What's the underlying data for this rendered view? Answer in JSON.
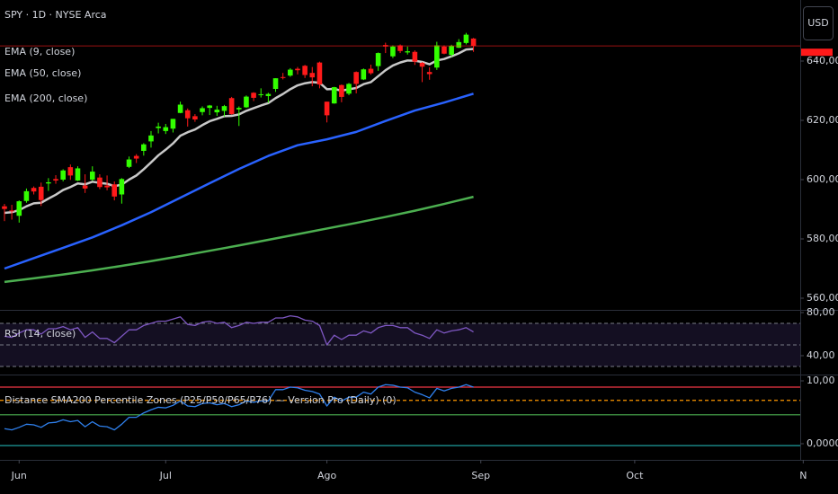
{
  "chart_data": [
    {
      "type": "candlestick",
      "title": "SPY · 1D · NYSE Arca",
      "x": [
        0,
        1,
        2,
        3,
        4,
        5,
        6,
        7,
        8,
        9,
        10,
        11,
        12,
        13,
        14,
        15,
        16,
        17,
        18,
        19,
        20,
        21,
        22,
        23,
        24,
        25,
        26,
        27,
        28,
        29,
        30,
        31,
        32,
        33,
        34,
        35,
        36,
        37,
        38,
        39,
        40,
        41,
        42,
        43,
        44,
        45,
        46,
        47,
        48,
        49,
        50,
        51,
        52,
        53,
        54,
        55,
        56,
        57,
        58,
        59,
        60,
        61,
        62,
        63,
        64
      ],
      "open": [
        591.0,
        589.6,
        587.8,
        592.8,
        597.2,
        597.6,
        598.7,
        600.2,
        600.0,
        604.2,
        599.7,
        598.0,
        600.0,
        600.7,
        598.0,
        598.4,
        595.0,
        604.3,
        608.0,
        609.7,
        612.9,
        617.4,
        616.4,
        617.2,
        622.5,
        623.4,
        621.4,
        622.8,
        624.2,
        622.7,
        623.2,
        627.5,
        623.7,
        624.4,
        629.3,
        628.8,
        628.2,
        630.6,
        634.6,
        635.1,
        637.4,
        638.4,
        636.0,
        639.5,
        626.3,
        625.7,
        631.9,
        629.0,
        636.3,
        633.8,
        637.4,
        638.3,
        645.4,
        641.6,
        645.3,
        642.9,
        643.1,
        639.4,
        636.3,
        637.8,
        644.9,
        642.1,
        644.5,
        646.1,
        647.6
      ],
      "high": [
        591.8,
        591.5,
        593.0,
        597.0,
        597.7,
        599.0,
        600.5,
        601.5,
        603.5,
        605.1,
        604.5,
        601.8,
        604.5,
        601.8,
        601.4,
        599.4,
        600.5,
        607.8,
        608.6,
        612.3,
        616.4,
        619.2,
        618.8,
        620.5,
        626.3,
        624.0,
        622.1,
        624.7,
        625.2,
        624.9,
        625.2,
        627.9,
        624.7,
        628.4,
        629.5,
        630.8,
        629.3,
        634.2,
        636.0,
        637.6,
        638.0,
        638.7,
        638.0,
        639.8,
        626.3,
        631.3,
        632.1,
        632.6,
        636.5,
        637.5,
        638.8,
        642.9,
        646.2,
        645.3,
        645.6,
        644.9,
        643.6,
        639.7,
        637.9,
        646.5,
        645.3,
        645.5,
        647.4,
        649.5,
        647.8
      ],
      "low": [
        586.0,
        586.5,
        585.5,
        592.2,
        595.0,
        591.1,
        596.2,
        598.6,
        599.4,
        599.9,
        599.5,
        595.5,
        599.6,
        596.8,
        596.4,
        593.0,
        591.9,
        603.9,
        605.6,
        608.1,
        610.8,
        615.6,
        615.4,
        615.9,
        622.4,
        617.9,
        619.5,
        621.7,
        621.8,
        621.5,
        621.3,
        621.9,
        618.1,
        624.2,
        626.5,
        627.7,
        625.9,
        629.6,
        633.8,
        634.7,
        635.5,
        634.3,
        631.5,
        630.8,
        619.3,
        625.6,
        626.1,
        628.5,
        629.1,
        633.6,
        635.4,
        636.7,
        642.7,
        641.0,
        642.7,
        642.2,
        638.7,
        632.9,
        633.7,
        637.0,
        642.3,
        641.4,
        644.4,
        645.6,
        643.1
      ],
      "close": [
        590.1,
        589.4,
        592.7,
        596.1,
        596.0,
        593.1,
        599.1,
        599.7,
        603.1,
        601.4,
        603.8,
        597.0,
        602.7,
        597.5,
        597.4,
        594.3,
        600.2,
        606.8,
        607.1,
        611.9,
        614.9,
        617.9,
        617.7,
        620.5,
        625.3,
        620.7,
        620.3,
        624.1,
        625.0,
        623.6,
        624.8,
        622.1,
        624.2,
        628.0,
        627.6,
        628.8,
        628.9,
        634.2,
        634.4,
        637.1,
        636.9,
        635.3,
        634.5,
        632.1,
        621.7,
        631.2,
        627.9,
        632.3,
        632.3,
        637.2,
        635.9,
        642.7,
        644.9,
        644.9,
        643.4,
        643.3,
        639.8,
        638.1,
        635.6,
        645.3,
        642.5,
        645.1,
        646.4,
        648.9,
        645.1
      ],
      "up_color": "#33ff00",
      "down_color": "#ff1a1a",
      "series": [
        {
          "name": "EMA (9, close)",
          "color": "#c8c8c8",
          "values": [
            588.8,
            589.0,
            589.7,
            591.0,
            592.0,
            592.2,
            593.6,
            594.9,
            596.5,
            597.5,
            598.7,
            598.4,
            599.3,
            598.9,
            598.6,
            597.8,
            598.3,
            600.0,
            601.4,
            603.5,
            605.8,
            608.2,
            610.1,
            612.2,
            614.8,
            616.0,
            616.9,
            618.4,
            619.7,
            620.5,
            621.4,
            621.5,
            622.0,
            623.2,
            624.1,
            625.0,
            625.8,
            627.5,
            628.9,
            630.5,
            631.8,
            632.5,
            632.9,
            632.7,
            630.5,
            630.6,
            630.0,
            630.5,
            630.9,
            632.2,
            632.9,
            634.9,
            636.9,
            638.5,
            639.5,
            640.2,
            640.1,
            639.7,
            638.9,
            640.2,
            640.7,
            641.6,
            642.6,
            643.9,
            644.1
          ]
        },
        {
          "name": "EMA (50, close)",
          "color": "#2962ff",
          "x": [
            0,
            4,
            8,
            12,
            16,
            20,
            24,
            28,
            32,
            36,
            40,
            44,
            48,
            52,
            56,
            60,
            64
          ],
          "values": [
            570.0,
            573.5,
            577.0,
            580.5,
            584.6,
            589.0,
            593.9,
            598.8,
            603.6,
            608.0,
            611.6,
            613.6,
            616.1,
            619.8,
            623.3,
            626.0,
            629.0
          ]
        },
        {
          "name": "EMA (200, close)",
          "color": "#4caf50",
          "x": [
            0,
            4,
            8,
            12,
            16,
            20,
            24,
            28,
            32,
            36,
            40,
            44,
            48,
            52,
            56,
            60,
            64
          ],
          "values": [
            565.5,
            566.7,
            568.0,
            569.4,
            570.9,
            572.5,
            574.2,
            576.0,
            577.8,
            579.7,
            581.6,
            583.5,
            585.4,
            587.4,
            589.5,
            591.8,
            594.2
          ]
        }
      ],
      "xlim": [
        -0.61,
        108.59
      ],
      "ylim": [
        556.06,
        660.6
      ],
      "yticks": [
        {
          "value": 640,
          "label": "640,00"
        },
        {
          "value": 620,
          "label": "620,00"
        },
        {
          "value": 600,
          "label": "600,00"
        },
        {
          "value": 580,
          "label": "580,00"
        },
        {
          "value": 560,
          "label": "560,00"
        }
      ],
      "currency": "USD",
      "grid": false
    },
    {
      "type": "line",
      "title": "RSI (14, close)",
      "x": [
        0,
        1,
        2,
        3,
        4,
        5,
        6,
        7,
        8,
        9,
        10,
        11,
        12,
        13,
        14,
        15,
        16,
        17,
        18,
        19,
        20,
        21,
        22,
        23,
        24,
        25,
        26,
        27,
        28,
        29,
        30,
        31,
        32,
        33,
        34,
        35,
        36,
        37,
        38,
        39,
        40,
        41,
        42,
        43,
        44,
        45,
        46,
        47,
        48,
        49,
        50,
        51,
        52,
        53,
        54,
        55,
        56,
        57,
        58,
        59,
        60,
        61,
        62,
        63,
        64
      ],
      "values": [
        58,
        57,
        61,
        64,
        64,
        60,
        65,
        65,
        67,
        64,
        66,
        57,
        62,
        56,
        56,
        52,
        58,
        64,
        64,
        68,
        70,
        72,
        72,
        74,
        76,
        69,
        68,
        71,
        72,
        70,
        71,
        66,
        68,
        71,
        70,
        71,
        71,
        75,
        75,
        77,
        76,
        73,
        72,
        68,
        50,
        59,
        55,
        59,
        59,
        63,
        61,
        66,
        68,
        68,
        66,
        66,
        61,
        59,
        56,
        64,
        61,
        63,
        64,
        66,
        62
      ],
      "color": "#7e57c2",
      "bands": [
        70,
        50,
        30
      ],
      "band_color": "#787b86",
      "band_fill": "#140f22",
      "xlim": [
        -0.61,
        108.59
      ],
      "ylim": [
        21.67,
        82.5
      ],
      "yticks": [
        {
          "value": 80,
          "label": "80,00"
        },
        {
          "value": 40,
          "label": "40,00"
        }
      ]
    },
    {
      "type": "line",
      "title": "Distance SMA200 Percentile Zones (P25/P50/P65/P76) — Version Pro (Daily) (0)",
      "x": [
        0,
        1,
        2,
        3,
        4,
        5,
        6,
        7,
        8,
        9,
        10,
        11,
        12,
        13,
        14,
        15,
        16,
        17,
        18,
        19,
        20,
        21,
        22,
        23,
        24,
        25,
        26,
        27,
        28,
        29,
        30,
        31,
        32,
        33,
        34,
        35,
        36,
        37,
        38,
        39,
        40,
        41,
        42,
        43,
        44,
        45,
        46,
        47,
        48,
        49,
        50,
        51,
        52,
        53,
        54,
        55,
        56,
        57,
        58,
        59,
        60,
        61,
        62,
        63,
        64
      ],
      "values": [
        2.4,
        2.2,
        2.6,
        3.1,
        3.0,
        2.6,
        3.3,
        3.4,
        3.8,
        3.5,
        3.7,
        2.7,
        3.5,
        2.8,
        2.7,
        2.2,
        3.1,
        4.2,
        4.2,
        4.9,
        5.4,
        5.8,
        5.7,
        6.1,
        6.8,
        6.0,
        5.9,
        6.4,
        6.5,
        6.2,
        6.4,
        5.9,
        6.2,
        6.8,
        6.6,
        6.8,
        6.8,
        8.6,
        8.6,
        9.0,
        8.9,
        8.5,
        8.3,
        7.9,
        6.0,
        7.4,
        6.8,
        7.4,
        7.4,
        8.2,
        7.9,
        9.0,
        9.4,
        9.3,
        9.0,
        8.9,
        8.2,
        7.8,
        7.3,
        8.8,
        8.4,
        8.8,
        9.0,
        9.4,
        9.0
      ],
      "color": "#2f80ed",
      "levels": [
        {
          "value": 9.0,
          "color": "#f23645"
        },
        {
          "value": 6.9,
          "color": "#ff9800",
          "dash": true
        },
        {
          "value": 4.6,
          "color": "#4caf50"
        },
        {
          "value": -0.3,
          "color": "#1e9e9e"
        }
      ],
      "xlim": [
        -0.61,
        108.59
      ],
      "ylim": [
        -2.57,
        10.86
      ],
      "yticks": [
        {
          "value": 10,
          "label": "10,00"
        },
        {
          "value": 0,
          "label": "0,0000"
        }
      ],
      "xticks": [
        {
          "value": 2,
          "label": "Jun"
        },
        {
          "value": 22,
          "label": "Jul"
        },
        {
          "value": 44,
          "label": "Ago"
        },
        {
          "value": 65,
          "label": "Sep"
        },
        {
          "value": 86,
          "label": "Oct"
        },
        {
          "value": 109,
          "label": "N"
        }
      ]
    }
  ]
}
